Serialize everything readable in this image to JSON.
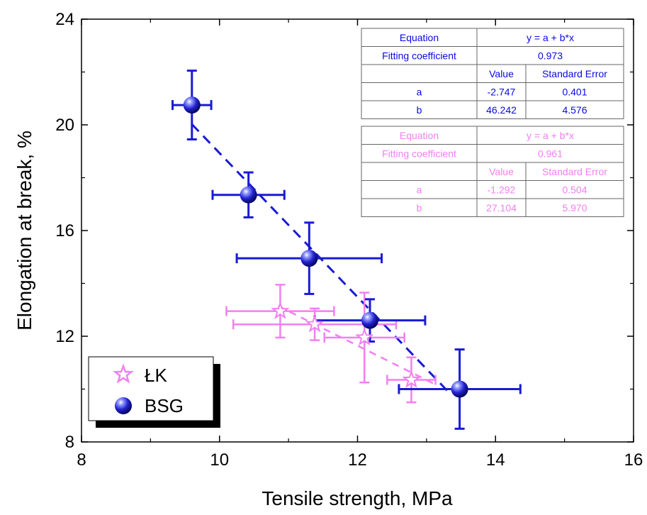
{
  "chart_data": {
    "type": "scatter",
    "xlabel": "Tensile strength, MPa",
    "ylabel": "Elongation at break, %",
    "xlim": [
      8,
      16
    ],
    "ylim": [
      8,
      24
    ],
    "x_ticks": [
      "8",
      "10",
      "12",
      "14",
      "16"
    ],
    "y_ticks": [
      "8",
      "12",
      "16",
      "20",
      "24"
    ],
    "grid": false,
    "legend_position": "bottom-left",
    "series": [
      {
        "name": "BSG",
        "color": "#1a1ad6",
        "marker": "sphere",
        "points": [
          {
            "x": 9.6,
            "y": 20.75,
            "xerr": 0.28,
            "yerr": 1.3
          },
          {
            "x": 10.42,
            "y": 17.35,
            "xerr": 0.52,
            "yerr": 0.85
          },
          {
            "x": 11.3,
            "y": 14.95,
            "xerr": 1.05,
            "yerr": 1.35
          },
          {
            "x": 12.18,
            "y": 12.6,
            "xerr": 0.8,
            "yerr": 0.8
          },
          {
            "x": 13.48,
            "y": 10.0,
            "xerr": 0.88,
            "yerr": 1.5
          }
        ],
        "fit": {
          "x": [
            9.6,
            13.3
          ]
        }
      },
      {
        "name": "ŁK",
        "color": "#f27ff2",
        "marker": "star",
        "points": [
          {
            "x": 10.88,
            "y": 12.95,
            "xerr": 0.78,
            "yerr": 1.0
          },
          {
            "x": 11.38,
            "y": 12.45,
            "xerr": 1.18,
            "yerr": 0.6
          },
          {
            "x": 12.1,
            "y": 11.95,
            "xerr": 0.58,
            "yerr": 1.7
          },
          {
            "x": 12.78,
            "y": 10.35,
            "xerr": 0.35,
            "yerr": 0.85
          }
        ],
        "fit": {
          "x": [
            10.85,
            13.1
          ]
        }
      }
    ],
    "fit_tables": [
      {
        "color": "#0a0ae0",
        "equation_label": "Equation",
        "equation": "y = a + b*x",
        "coef_label": "Fitting coefficient",
        "coef": "0.973",
        "value_header": "Value",
        "error_header": "Standard Error",
        "rows": [
          {
            "param": "a",
            "value": "-2.747",
            "error": "0.401"
          },
          {
            "param": "b",
            "value": "46.242",
            "error": "4.576"
          }
        ]
      },
      {
        "color": "#f27ff2",
        "equation_label": "Equation",
        "equation": "y = a + b*x",
        "coef_label": "Fitting coefficient",
        "coef": "0.961",
        "value_header": "Value",
        "error_header": "Standard Error",
        "rows": [
          {
            "param": "a",
            "value": "-1.292",
            "error": "0.504"
          },
          {
            "param": "b",
            "value": "27.104",
            "error": "5.970"
          }
        ]
      }
    ]
  }
}
